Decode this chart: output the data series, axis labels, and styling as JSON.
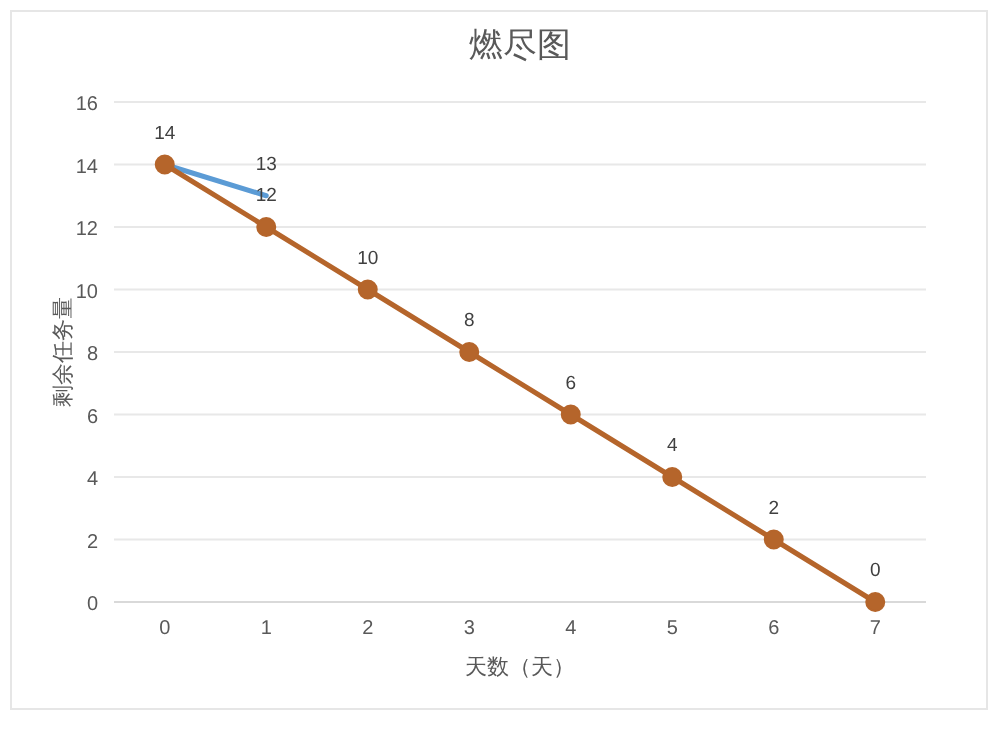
{
  "chart_data": {
    "type": "line",
    "title": "燃尽图",
    "xlabel": "天数（天）",
    "ylabel": "剩余任务量",
    "categories": [
      "0",
      "1",
      "2",
      "3",
      "4",
      "5",
      "6",
      "7"
    ],
    "series": [
      {
        "color": "#5b9bd5",
        "values": [
          14,
          13,
          null,
          null,
          null,
          null,
          null,
          null
        ],
        "value_labels": [
          null,
          "13",
          null,
          null,
          null,
          null,
          null,
          null
        ],
        "marker": "none"
      },
      {
        "color": "#b5652b",
        "values": [
          14,
          12,
          10,
          8,
          6,
          4,
          2,
          0
        ],
        "marker": "circle"
      }
    ],
    "ylim": [
      0,
      16
    ],
    "yticks": [
      0,
      2,
      4,
      6,
      8,
      10,
      12,
      14,
      16
    ],
    "grid": "y",
    "data_labels": true,
    "line_style": "solid"
  }
}
